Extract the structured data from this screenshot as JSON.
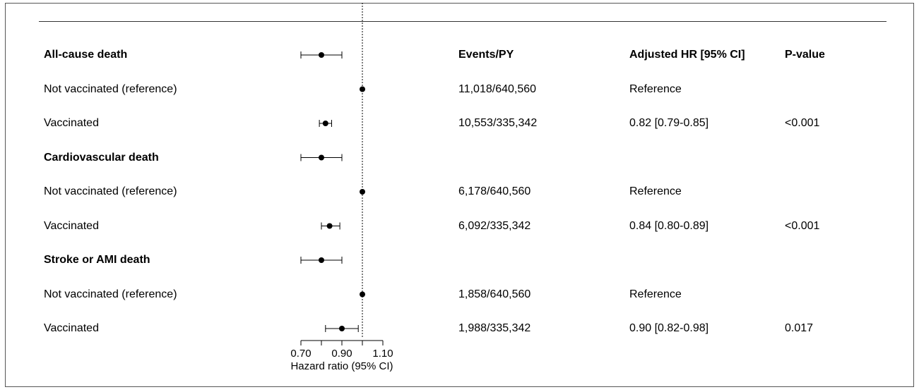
{
  "headers": {
    "events": "Events/PY",
    "hr": "Adjusted HR [95% CI]",
    "p": "P-value"
  },
  "rows": [
    {
      "label": "All-cause death",
      "bold": true,
      "events": "",
      "hr": "",
      "p": ""
    },
    {
      "label": "Not vaccinated (reference)",
      "bold": false,
      "events": "11,018/640,560",
      "hr": "Reference",
      "p": ""
    },
    {
      "label": "Vaccinated",
      "bold": false,
      "events": "10,553/335,342",
      "hr": "0.82 [0.79-0.85]",
      "p": "<0.001"
    },
    {
      "label": "Cardiovascular death",
      "bold": true,
      "events": "",
      "hr": "",
      "p": ""
    },
    {
      "label": "Not vaccinated (reference)",
      "bold": false,
      "events": "6,178/640,560",
      "hr": "Reference",
      "p": ""
    },
    {
      "label": "Vaccinated",
      "bold": false,
      "events": "6,092/335,342",
      "hr": "0.84 [0.80-0.89]",
      "p": "<0.001"
    },
    {
      "label": "Stroke or AMI death",
      "bold": true,
      "events": "",
      "hr": "",
      "p": ""
    },
    {
      "label": "Not vaccinated (reference)",
      "bold": false,
      "events": "1,858/640,560",
      "hr": "Reference",
      "p": ""
    },
    {
      "label": "Vaccinated",
      "bold": false,
      "events": "1,988/335,342",
      "hr": "0.90 [0.82-0.98]",
      "p": "0.017"
    }
  ],
  "chart_data": {
    "type": "forest",
    "xlabel": "Hazard ratio (95% CI)",
    "xlim": [
      0.7,
      1.1
    ],
    "ticks": [
      0.7,
      0.8,
      0.9,
      1.0,
      1.1
    ],
    "tick_labels": [
      "0.70",
      "",
      "0.90",
      "",
      "1.10"
    ],
    "reference_line": 1.0,
    "points": [
      {
        "hr": 0.8,
        "lo": 0.7,
        "hi": 0.9
      },
      {
        "hr": 1.0,
        "lo": 1.0,
        "hi": 1.0
      },
      {
        "hr": 0.82,
        "lo": 0.79,
        "hi": 0.85
      },
      {
        "hr": 0.8,
        "lo": 0.7,
        "hi": 0.9
      },
      {
        "hr": 1.0,
        "lo": 1.0,
        "hi": 1.0
      },
      {
        "hr": 0.84,
        "lo": 0.8,
        "hi": 0.89
      },
      {
        "hr": 0.8,
        "lo": 0.7,
        "hi": 0.9
      },
      {
        "hr": 1.0,
        "lo": 1.0,
        "hi": 1.0
      },
      {
        "hr": 0.9,
        "lo": 0.82,
        "hi": 0.98
      }
    ]
  }
}
